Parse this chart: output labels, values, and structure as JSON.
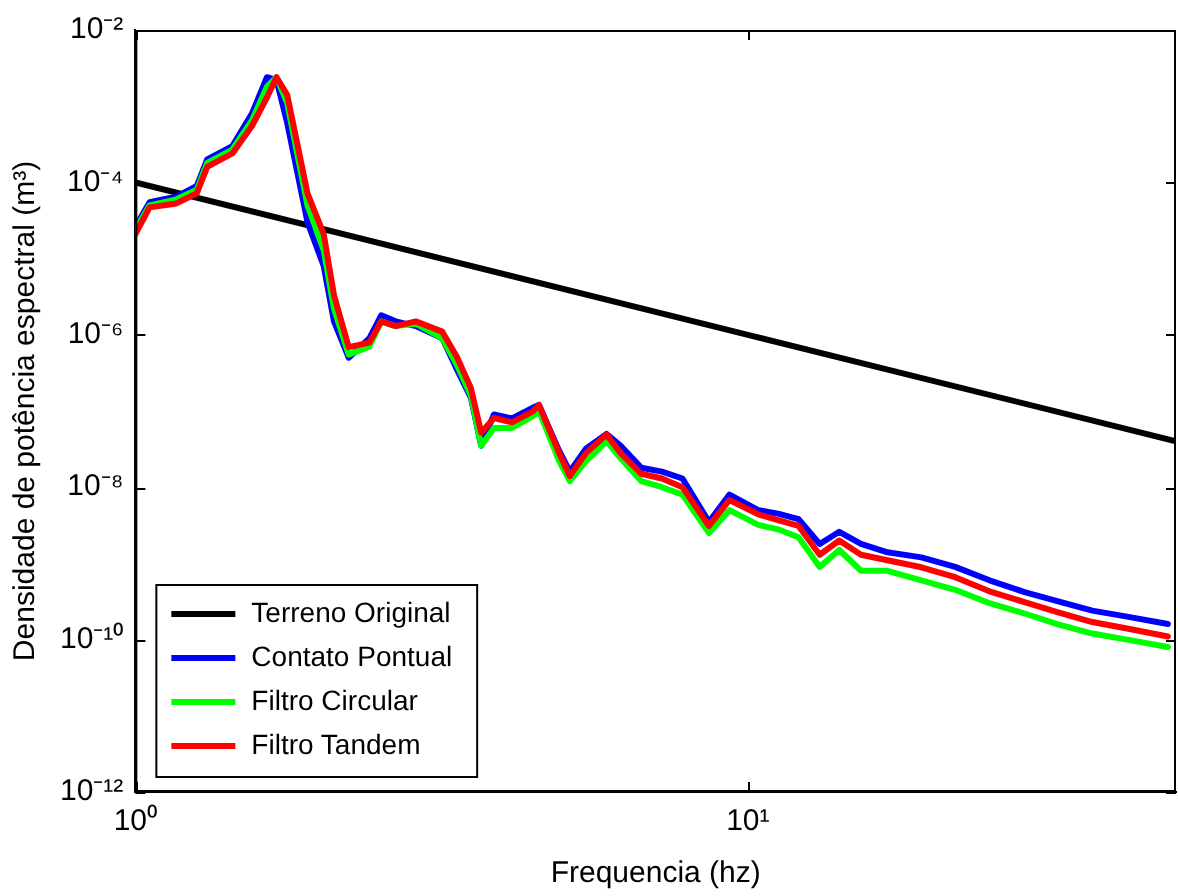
{
  "chart_data": {
    "type": "line",
    "xlabel": "Frequencia (hz)",
    "ylabel": "Densidade de potência espectral (m³)",
    "log": "xy",
    "grid": false,
    "legend": "bottom left",
    "marker": "none",
    "line_style": "solid",
    "xlim": [
      1,
      50
    ],
    "xticks": [
      {
        "value": 1,
        "label": "10⁰"
      },
      {
        "value": 10,
        "label": "10¹"
      }
    ],
    "ylim": [
      1e-12,
      0.01
    ],
    "yticks": [
      {
        "value": 1e-12,
        "label": "10⁻¹²"
      },
      {
        "value": 1e-10,
        "label": "10⁻¹⁰"
      },
      {
        "value": 1e-08,
        "label": "10⁻⁸"
      },
      {
        "value": 1e-06,
        "label": "10⁻⁶"
      },
      {
        "value": 0.0001,
        "label": "10⁻⁴"
      },
      {
        "value": 0.01,
        "label": "10⁻²"
      }
    ],
    "x": [
      1,
      1.055,
      1.167,
      1.26,
      1.31,
      1.44,
      1.55,
      1.64,
      1.7,
      1.77,
      1.91,
      2.03,
      2.11,
      2.23,
      2.41,
      2.52,
      2.66,
      2.87,
      3.17,
      3.35,
      3.53,
      3.67,
      3.85,
      4.12,
      4.45,
      4.56,
      4.92,
      5.12,
      5.44,
      5.88,
      6.2,
      6.7,
      7.24,
      7.82,
      8.64,
      9.33,
      10.4,
      11.2,
      12.1,
      13.1,
      14.1,
      15.3,
      16.9,
      19.2,
      21.8,
      24.8,
      28.3,
      32,
      36.5,
      41.6,
      48.5
    ],
    "series": [
      {
        "name": "Terreno Original",
        "color": "#000000",
        "x": [
          1,
          10,
          50
        ],
        "values": [
          0.0001,
          1e-06,
          4e-08
        ]
      },
      {
        "name": "Contato Pontual",
        "color": "#0000ff",
        "values": [
          2.6e-05,
          5.5e-05,
          6.5e-05,
          9e-05,
          0.0002,
          0.0003,
          0.0008,
          0.0024,
          0.0022,
          0.0006,
          3e-05,
          8e-06,
          1.5e-06,
          5e-07,
          9e-07,
          1.8e-06,
          1.5e-06,
          1.3e-06,
          9e-07,
          3.5e-07,
          1.5e-07,
          3.5e-08,
          9e-08,
          8e-08,
          1.1e-07,
          1.2e-07,
          3e-08,
          1.6e-08,
          3.2e-08,
          5e-08,
          3.5e-08,
          1.8e-08,
          1.6e-08,
          1.3e-08,
          3.5e-09,
          8e-09,
          5e-09,
          4.5e-09,
          3.8e-09,
          1.8e-09,
          2.6e-09,
          1.8e-09,
          1.4e-09,
          1.2e-09,
          9e-10,
          6e-10,
          4.2e-10,
          3.2e-10,
          2.4e-10,
          2e-10,
          1.6e-10
        ]
      },
      {
        "name": "Filtro Circular",
        "color": "#00ff00",
        "values": [
          2.4e-05,
          5e-05,
          6e-05,
          8e-05,
          0.00018,
          0.00027,
          0.00065,
          0.0018,
          0.0024,
          0.0011,
          5e-05,
          1.3e-05,
          2.2e-06,
          5.5e-07,
          7e-07,
          1.5e-06,
          1.3e-06,
          1.4e-06,
          9e-07,
          4e-07,
          1.6e-07,
          3.5e-08,
          6e-08,
          6e-08,
          8.5e-08,
          1e-07,
          2.2e-08,
          1.2e-08,
          2.2e-08,
          4e-08,
          2.4e-08,
          1.2e-08,
          1e-08,
          8e-09,
          2.5e-09,
          5e-09,
          3.2e-09,
          2.8e-09,
          2.2e-09,
          9e-10,
          1.5e-09,
          8e-10,
          8e-10,
          6e-10,
          4.5e-10,
          3e-10,
          2.2e-10,
          1.6e-10,
          1.2e-10,
          1e-10,
          8e-11
        ]
      },
      {
        "name": "Filtro Tandem",
        "color": "#ff0000",
        "values": [
          2.1e-05,
          4.7e-05,
          5.3e-05,
          7.2e-05,
          0.00016,
          0.00024,
          0.00055,
          0.0013,
          0.0024,
          0.0014,
          7.2e-05,
          2.1e-05,
          3.3e-06,
          6.9e-07,
          7.9e-07,
          1.5e-06,
          1.3e-06,
          1.5e-06,
          1.1e-06,
          5.1e-07,
          2e-07,
          5.2e-08,
          8.1e-08,
          7.1e-08,
          9.8e-08,
          1.2e-07,
          2.8e-08,
          1.4e-08,
          2.8e-08,
          4.9e-08,
          2.8e-08,
          1.5e-08,
          1.3e-08,
          1e-08,
          3.1e-09,
          6.8e-09,
          4.4e-09,
          3.7e-09,
          3.1e-09,
          1.3e-09,
          2e-09,
          1.3e-09,
          1.1e-09,
          8.9e-10,
          6.6e-10,
          4.3e-10,
          3.1e-10,
          2.3e-10,
          1.7e-10,
          1.4e-10,
          1.1e-10
        ]
      }
    ]
  }
}
